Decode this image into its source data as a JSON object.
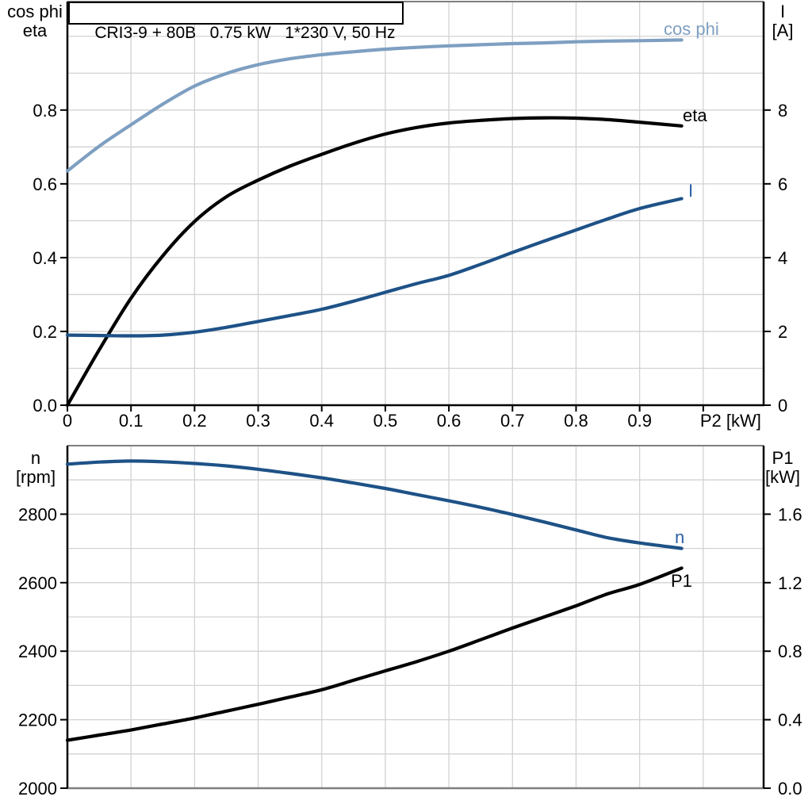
{
  "title_box": {
    "text": "CRI3-9 + 80B   0.75 kW   1*230 V, 50 Hz"
  },
  "axis_corner_labels": {
    "top_left": {
      "line1": "cos phi",
      "line2": "eta"
    },
    "top_right": {
      "line1": "I",
      "line2": "[A]"
    },
    "bottom_left": {
      "line1": "n",
      "line2": "[rpm]"
    },
    "bottom_right": {
      "line1": "P1",
      "line2": "[kW]"
    }
  },
  "colors": {
    "light_blue": "#7E9FC1",
    "dark_blue": "#1E5287",
    "blue_label": "#2B5FA6",
    "black": "#000000",
    "grid": "#d2d2d2",
    "border_gray": "#7f7f7f"
  },
  "chart_data": [
    {
      "type": "line",
      "title": "CRI3-9 + 80B  0.75 kW  1*230 V, 50 Hz",
      "xlabel": "P2 [kW]",
      "ylabel_left": "cos phi / eta",
      "ylabel_right": "I [A]",
      "xlim": [
        0,
        1.095
      ],
      "ylim_left": [
        0,
        1.094
      ],
      "ylim_right": [
        0,
        10.94
      ],
      "grid": true,
      "legend_position": "curve-end-labels",
      "x_grid_step": 0.1,
      "y_grid_step_left": 0.1,
      "x_ticks": [
        0,
        0.1,
        0.2,
        0.3,
        0.4,
        0.5,
        0.6,
        0.7,
        0.8,
        0.9,
        1.0
      ],
      "x_tick_labels": [
        "0",
        "0.1",
        "0.2",
        "0.3",
        "0.4",
        "0.5",
        "0.6",
        "0.7",
        "0.8",
        "0.9",
        "P2 [kW]"
      ],
      "y_ticks_left": [
        0.0,
        0.2,
        0.4,
        0.6,
        0.8
      ],
      "y_tick_labels_left": [
        "0.0",
        "0.2",
        "0.4",
        "0.6",
        "0.8"
      ],
      "y_ticks_right": [
        0,
        2,
        4,
        6,
        8
      ],
      "y_tick_labels_right": [
        "0",
        "2",
        "4",
        "6",
        "8"
      ],
      "x": [
        0,
        0.05,
        0.1,
        0.15,
        0.2,
        0.25,
        0.3,
        0.35,
        0.4,
        0.45,
        0.5,
        0.55,
        0.6,
        0.65,
        0.7,
        0.75,
        0.8,
        0.85,
        0.9,
        0.966
      ],
      "series": [
        {
          "name": "cos phi",
          "axis": "left",
          "color": "#7E9FC1",
          "label_color": "#7E9FC1",
          "values": [
            0.635,
            0.702,
            0.76,
            0.816,
            0.865,
            0.899,
            0.923,
            0.939,
            0.95,
            0.958,
            0.965,
            0.97,
            0.974,
            0.977,
            0.98,
            0.982,
            0.985,
            0.987,
            0.988,
            0.99
          ]
        },
        {
          "name": "eta",
          "axis": "left",
          "color": "#000000",
          "label_color": "#000000",
          "values": [
            0.0,
            0.15,
            0.29,
            0.405,
            0.498,
            0.565,
            0.61,
            0.648,
            0.68,
            0.71,
            0.735,
            0.753,
            0.765,
            0.772,
            0.777,
            0.779,
            0.778,
            0.774,
            0.767,
            0.757
          ]
        },
        {
          "name": "I",
          "axis": "right",
          "color": "#1E5287",
          "label_color": "#2B5FA6",
          "values": [
            1.9,
            1.89,
            1.88,
            1.9,
            1.98,
            2.11,
            2.27,
            2.43,
            2.6,
            2.82,
            3.06,
            3.3,
            3.52,
            3.82,
            4.14,
            4.45,
            4.75,
            5.05,
            5.33,
            5.6
          ]
        }
      ]
    },
    {
      "type": "line",
      "title": "",
      "xlabel": "",
      "ylabel_left": "n [rpm]",
      "ylabel_right": "P1 [kW]",
      "xlim": [
        0,
        1.095
      ],
      "ylim_left": [
        2000,
        3000
      ],
      "ylim_right": [
        0.0,
        2.0
      ],
      "grid": true,
      "legend_position": "curve-end-labels",
      "x_grid_step": 0.1,
      "y_grid_step_left": 100,
      "x_ticks": [],
      "x_tick_labels": [],
      "y_ticks_left": [
        2000,
        2200,
        2400,
        2600,
        2800
      ],
      "y_tick_labels_left": [
        "2000",
        "2200",
        "2400",
        "2600",
        "2800"
      ],
      "y_ticks_right": [
        0.0,
        0.4,
        0.8,
        1.2,
        1.6
      ],
      "y_tick_labels_right": [
        "0.0",
        "0.4",
        "0.8",
        "1.2",
        "1.6"
      ],
      "x": [
        0,
        0.05,
        0.1,
        0.15,
        0.2,
        0.25,
        0.3,
        0.35,
        0.4,
        0.45,
        0.5,
        0.55,
        0.6,
        0.65,
        0.7,
        0.75,
        0.8,
        0.85,
        0.9,
        0.966
      ],
      "series": [
        {
          "name": "n",
          "axis": "left",
          "color": "#1E5287",
          "label_color": "#2B5FA6",
          "values": [
            2946,
            2952,
            2955,
            2953,
            2948,
            2941,
            2931,
            2919,
            2906,
            2891,
            2875,
            2857,
            2839,
            2820,
            2799,
            2777,
            2754,
            2731,
            2716,
            2700
          ]
        },
        {
          "name": "P1",
          "axis": "right",
          "color": "#000000",
          "label_color": "#000000",
          "values": [
            0.28,
            0.31,
            0.34,
            0.375,
            0.41,
            0.45,
            0.49,
            0.532,
            0.575,
            0.63,
            0.685,
            0.74,
            0.8,
            0.867,
            0.935,
            1.0,
            1.065,
            1.135,
            1.19,
            1.285
          ]
        }
      ]
    }
  ]
}
